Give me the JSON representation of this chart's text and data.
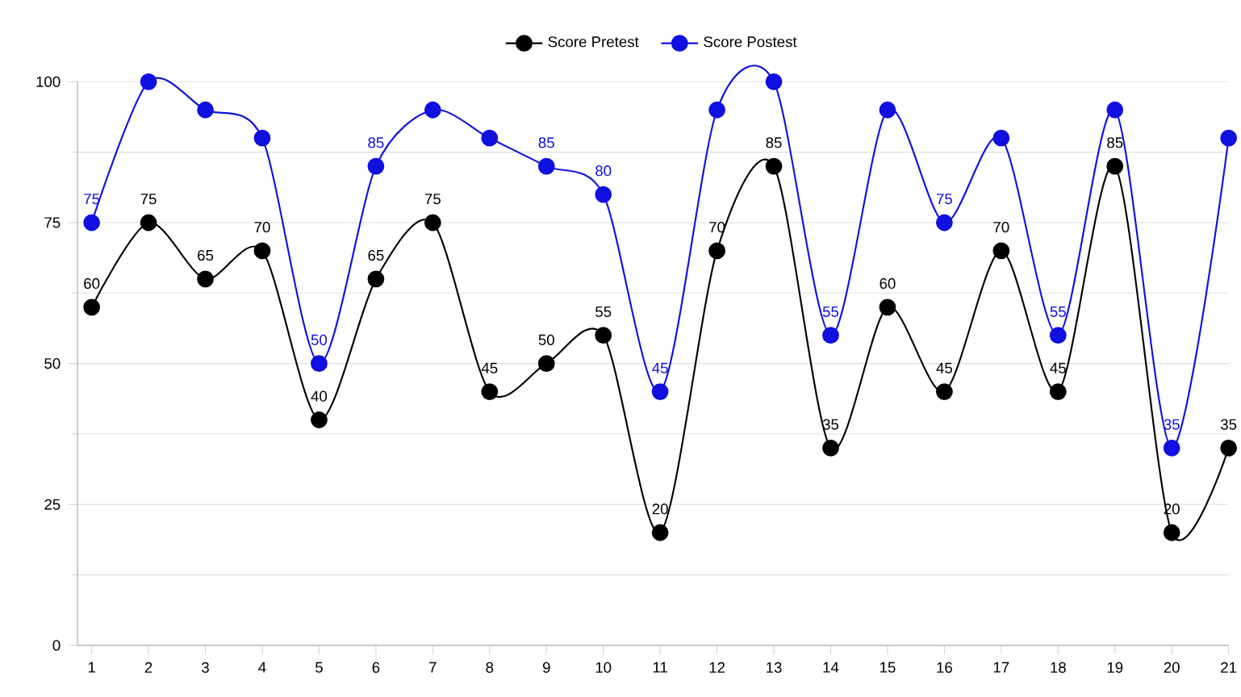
{
  "chart_data": {
    "type": "line",
    "categories": [
      "1",
      "2",
      "3",
      "4",
      "5",
      "6",
      "7",
      "8",
      "9",
      "10",
      "11",
      "12",
      "13",
      "14",
      "15",
      "16",
      "17",
      "18",
      "19",
      "20",
      "21"
    ],
    "series": [
      {
        "name": "Score Pretest",
        "color": "#000000",
        "values": [
          60,
          75,
          65,
          70,
          40,
          65,
          75,
          45,
          50,
          55,
          20,
          70,
          85,
          35,
          60,
          45,
          70,
          45,
          85,
          20,
          35
        ],
        "value_labels": [
          "60",
          "75",
          "65",
          "70",
          "40",
          "65",
          "75",
          "45",
          "50",
          "55",
          "20",
          "70",
          "85",
          "35",
          "60",
          "45",
          "70",
          "45",
          "85",
          "20",
          "35"
        ]
      },
      {
        "name": "Score Postest",
        "color": "#1010e0",
        "values": [
          75,
          100,
          95,
          90,
          50,
          85,
          95,
          90,
          85,
          80,
          45,
          95,
          100,
          55,
          95,
          75,
          90,
          55,
          95,
          35,
          90
        ],
        "value_labels": [
          "75",
          null,
          null,
          null,
          "50",
          "85",
          null,
          null,
          "85",
          "80",
          "45",
          null,
          null,
          "55",
          null,
          "75",
          null,
          "55",
          null,
          "35",
          null
        ]
      }
    ],
    "ylim": [
      0,
      100
    ],
    "yticks": [
      0,
      25,
      50,
      75,
      100
    ],
    "grid": "y",
    "legend": "top",
    "marker": "circle",
    "line_style": "solid"
  }
}
